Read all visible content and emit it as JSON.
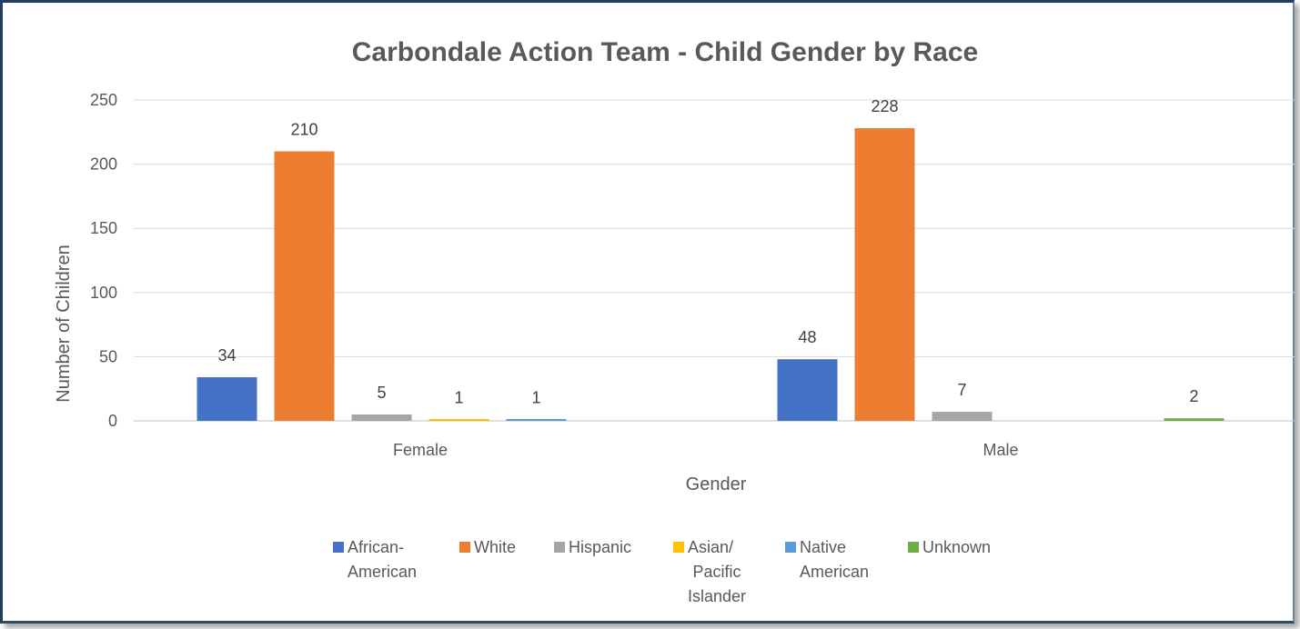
{
  "chart_data": {
    "type": "bar",
    "title": "Carbondale Action Team - Child Gender by Race",
    "xlabel": "Gender",
    "ylabel": "Number of Children",
    "categories": [
      "Female",
      "Male"
    ],
    "ylim": [
      0,
      250
    ],
    "yticks": [
      0,
      50,
      100,
      150,
      200,
      250
    ],
    "grid": true,
    "legend_position": "bottom",
    "series": [
      {
        "name": "African-American",
        "legend_lines": [
          "African-",
          "American"
        ],
        "color": "#4472C4",
        "values": [
          34,
          48
        ],
        "labels": [
          "34",
          "48"
        ]
      },
      {
        "name": "White",
        "legend_lines": [
          "White"
        ],
        "color": "#ED7D31",
        "values": [
          210,
          228
        ],
        "labels": [
          "210",
          "228"
        ]
      },
      {
        "name": "Hispanic",
        "legend_lines": [
          "Hispanic"
        ],
        "color": "#A5A5A5",
        "values": [
          5,
          7
        ],
        "labels": [
          "5",
          "7"
        ]
      },
      {
        "name": "Asian/ Pacific Islander",
        "legend_lines": [
          "Asian/",
          "Pacific",
          "Islander"
        ],
        "color": "#FFC000",
        "values": [
          1,
          null
        ],
        "labels": [
          "1",
          ""
        ]
      },
      {
        "name": "Native American",
        "legend_lines": [
          "Native",
          "American"
        ],
        "color": "#5B9BD5",
        "values": [
          1,
          null
        ],
        "labels": [
          "1",
          ""
        ]
      },
      {
        "name": "Unknown",
        "legend_lines": [
          "Unknown"
        ],
        "color": "#70AD47",
        "values": [
          null,
          2
        ],
        "labels": [
          "",
          "2"
        ]
      }
    ]
  }
}
